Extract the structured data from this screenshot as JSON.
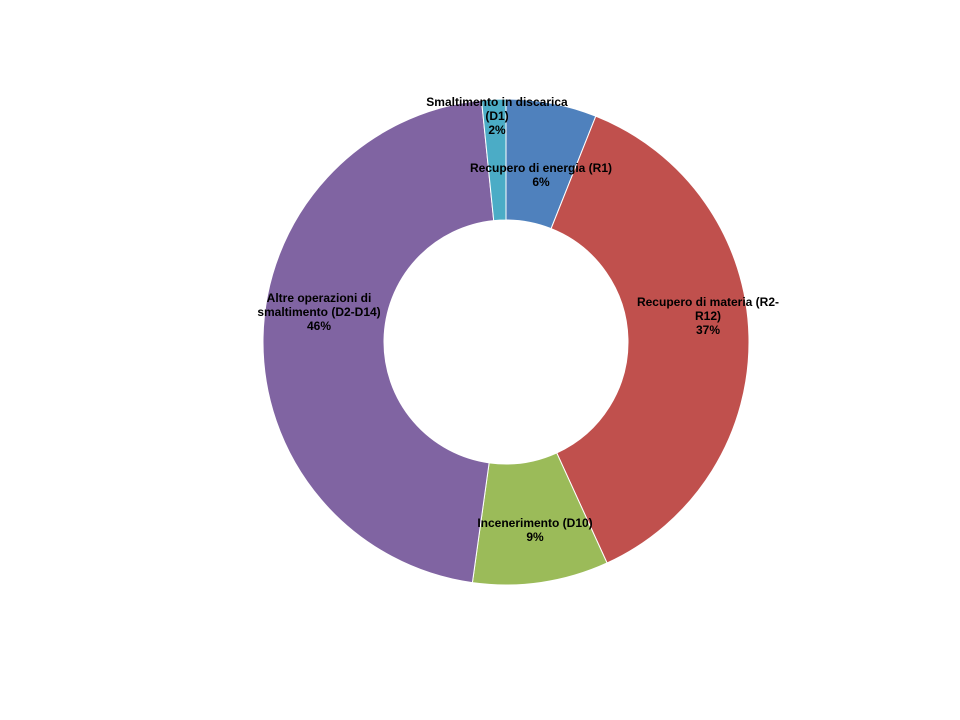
{
  "chart_data": {
    "type": "donut",
    "title": "",
    "start_angle_deg": 0,
    "direction": "clockwise",
    "slices": [
      {
        "name": "Recupero di energia (R1)",
        "value": 6,
        "label_lines": [
          "Recupero  di energia (R1)"
        ],
        "percent_label": "6%",
        "color": "#4F81BD"
      },
      {
        "name": "Recupero di materia (R2-R12)",
        "value": 37,
        "label_lines": [
          "Recupero  di materia (R2-",
          "R12)"
        ],
        "percent_label": "37%",
        "color": "#C0504D"
      },
      {
        "name": "Incenerimento (D10)",
        "value": 9,
        "label_lines": [
          "Incenerimento  (D10)"
        ],
        "percent_label": "9%",
        "color": "#9BBB59"
      },
      {
        "name": "Altre operazioni di smaltimento (D2-D14)",
        "value": 46,
        "label_lines": [
          "Altre operazioni di",
          "smaltimento (D2-D14)"
        ],
        "percent_label": "46%",
        "color": "#8064A2"
      },
      {
        "name": "Smaltimento in discarica (D1)",
        "value": 1.6,
        "label_lines": [
          "Smaltimento  in discarica",
          "(D1)"
        ],
        "percent_label": "2%",
        "color": "#4BACC6"
      }
    ]
  }
}
